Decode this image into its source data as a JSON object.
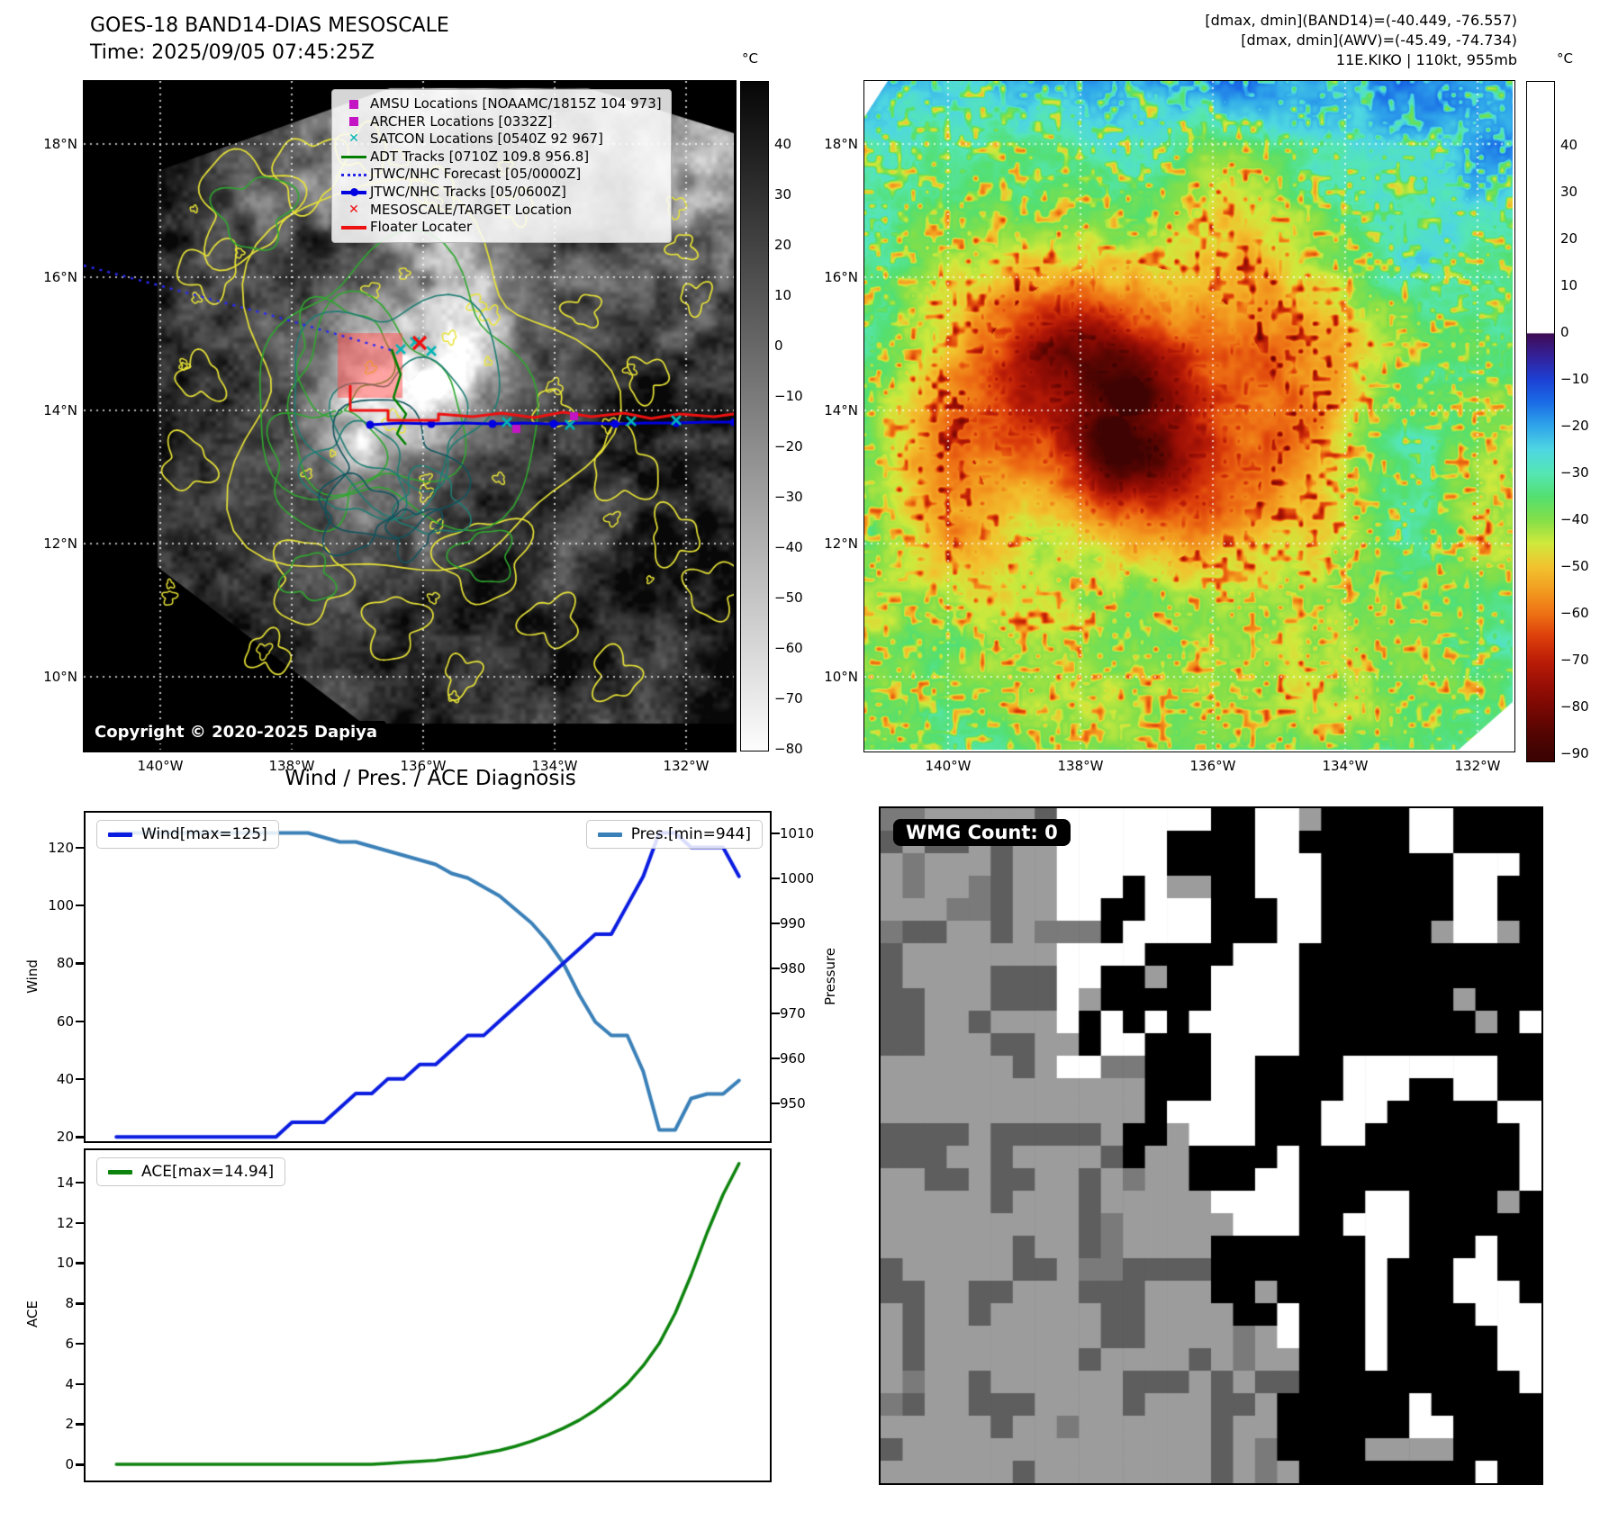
{
  "band14": {
    "title": "GOES-18 BAND14-DIAS MESOSCALE",
    "time_label": "Time: 2025/09/05 07:45:25Z",
    "copyright": "Copyright © 2020-2025 Dapiya",
    "lat_ticks": [
      "18°N",
      "16°N",
      "14°N",
      "12°N",
      "10°N"
    ],
    "lon_ticks": [
      "140°W",
      "138°W",
      "136°W",
      "134°W",
      "132°W"
    ],
    "colorbar": {
      "unit": "°C",
      "ticks": [
        "40",
        "30",
        "20",
        "10",
        "0",
        "−10",
        "−20",
        "−30",
        "−40",
        "−50",
        "−60",
        "−70",
        "−80"
      ]
    },
    "legend": [
      {
        "label": "AMSU Locations [NOAAMC/1815Z 104 973]",
        "marker": "square",
        "color": "#c315c3"
      },
      {
        "label": "ARCHER Locations [0332Z]",
        "marker": "square",
        "color": "#c315c3"
      },
      {
        "label": "SATCON Locations [0540Z 92 967]",
        "marker": "x",
        "color": "#00b5b5"
      },
      {
        "label": "ADT Tracks [0710Z 109.8 956.8]",
        "marker": "line",
        "color": "#007f00"
      },
      {
        "label": "JTWC/NHC Forecast [05/0000Z]",
        "marker": "dotted",
        "color": "#2525e8"
      },
      {
        "label": "JTWC/NHC Tracks [05/0600Z]",
        "marker": "line-dot",
        "color": "#0000e0"
      },
      {
        "label": "MESOSCALE/TARGET Location",
        "marker": "x",
        "color": "#ee1111"
      },
      {
        "label": "Floater Locater",
        "marker": "line",
        "color": "#ee1111"
      }
    ]
  },
  "awv": {
    "info_lines": [
      "[dmax, dmin](BAND14)=(-40.449, -76.557)",
      "[dmax, dmin](AWV)=(-45.49, -74.734)",
      "11E.KIKO | 110kt, 955mb"
    ],
    "lat_ticks": [
      "18°N",
      "16°N",
      "14°N",
      "12°N",
      "10°N"
    ],
    "lon_ticks": [
      "140°W",
      "138°W",
      "136°W",
      "134°W",
      "132°W"
    ],
    "colorbar": {
      "unit": "°C",
      "ticks": [
        "40",
        "30",
        "20",
        "10",
        "0",
        "−10",
        "−20",
        "−30",
        "−40",
        "−50",
        "−60",
        "−70",
        "−80",
        "−90"
      ]
    }
  },
  "diagnosis": {
    "title": "Wind / Pres. / ACE Diagnosis"
  },
  "wmg": {
    "count_label": "WMG Count: 0"
  },
  "chart_data": [
    {
      "type": "line",
      "title": "Wind / Pres. / ACE Diagnosis",
      "x_tick_labels": [],
      "series": [
        {
          "name": "Wind[max=125]",
          "axis": "left",
          "color": "#0a1ce0",
          "values": [
            20,
            20,
            20,
            20,
            20,
            20,
            20,
            20,
            20,
            20,
            20,
            25,
            25,
            25,
            30,
            35,
            35,
            40,
            40,
            45,
            45,
            50,
            55,
            55,
            60,
            65,
            70,
            75,
            80,
            85,
            90,
            90,
            100,
            110,
            125,
            125,
            120,
            120,
            120,
            110
          ]
        },
        {
          "name": "Pres.[min=944]",
          "axis": "right",
          "color": "#3a80b8",
          "values": [
            1010,
            1010,
            1010,
            1010,
            1010,
            1010,
            1010,
            1010,
            1010,
            1010,
            1010,
            1010,
            1010,
            1009,
            1008,
            1008,
            1007,
            1006,
            1005,
            1004,
            1003,
            1001,
            1000,
            998,
            996,
            993,
            990,
            986,
            981,
            974,
            968,
            965,
            965,
            957,
            944,
            944,
            951,
            952,
            952,
            955
          ]
        }
      ],
      "left_axis": {
        "label": "Wind",
        "ticks": [
          20,
          40,
          60,
          80,
          100,
          120
        ],
        "lim": [
          18.5,
          132
        ]
      },
      "right_axis": {
        "label": "Pressure",
        "ticks": [
          950,
          960,
          970,
          980,
          990,
          1000,
          1010
        ],
        "lim": [
          941.5,
          1014.5
        ]
      }
    },
    {
      "type": "line",
      "x_tick_labels": [],
      "series": [
        {
          "name": "ACE[max=14.94]",
          "axis": "left",
          "color": "#0c830c",
          "values": [
            0,
            0,
            0,
            0,
            0,
            0,
            0,
            0,
            0,
            0,
            0,
            0,
            0,
            0,
            0,
            0,
            0,
            0.05,
            0.1,
            0.15,
            0.2,
            0.3,
            0.4,
            0.55,
            0.7,
            0.9,
            1.15,
            1.45,
            1.8,
            2.2,
            2.7,
            3.3,
            4.0,
            4.9,
            6.0,
            7.5,
            9.4,
            11.5,
            13.4,
            14.94
          ]
        }
      ],
      "left_axis": {
        "label": "ACE",
        "ticks": [
          0,
          2,
          4,
          6,
          8,
          10,
          12,
          14
        ],
        "lim": [
          -0.8,
          15.6
        ]
      }
    }
  ]
}
